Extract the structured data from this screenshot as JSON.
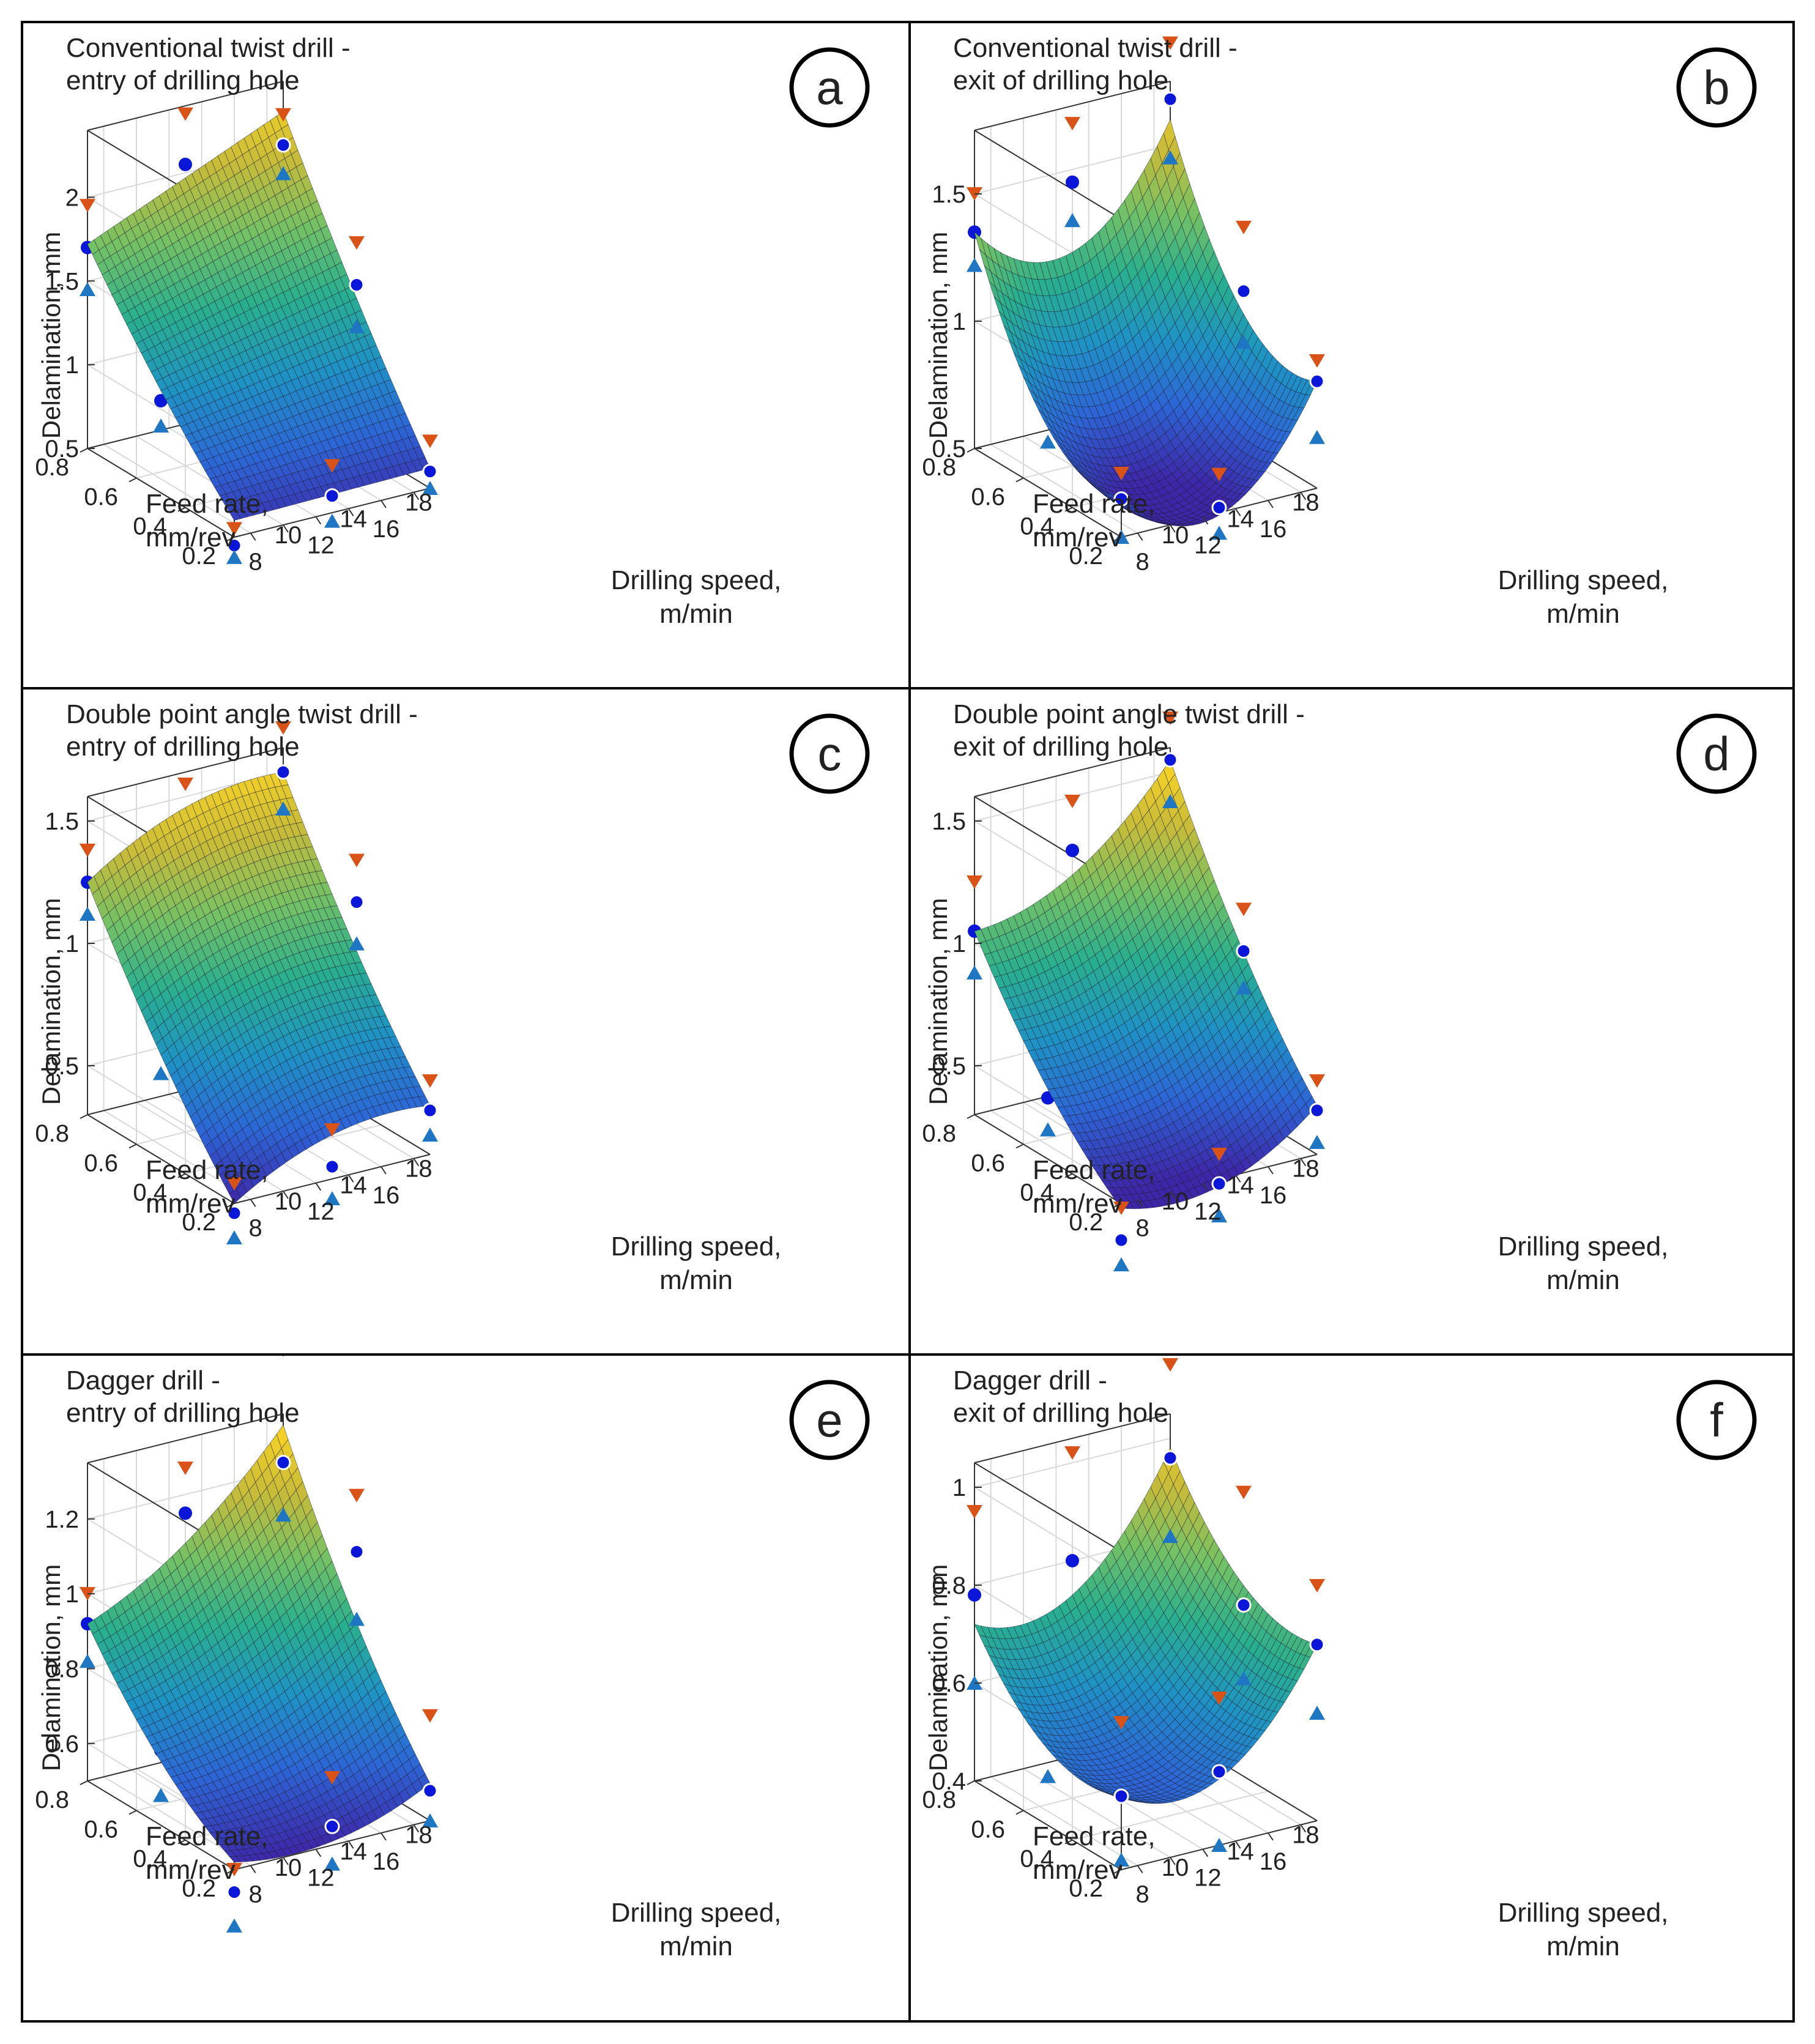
{
  "chart_data": [
    {
      "type": "surface",
      "panel_label": "a",
      "title": [
        "Conventional twist drill -",
        "entry of drilling hole"
      ],
      "xlabel": [
        "Drilling speed,",
        "m/min"
      ],
      "ylabel": [
        "Feed rate,",
        "mm/rev"
      ],
      "zlabel": "Delamination, mm",
      "x_ticks": [
        "8",
        "10",
        "12",
        "14",
        "16",
        "18"
      ],
      "y_ticks": [
        "0.2",
        "0.4",
        "0.6",
        "0.8"
      ],
      "z_ticks": [
        "0.5",
        "1",
        "1.5",
        "2"
      ],
      "xlim": [
        7,
        19
      ],
      "ylim": [
        0.2,
        0.8
      ],
      "zlim": [
        0.5,
        2.4
      ],
      "corners": [
        1.72,
        2.22,
        0.6,
        0.62
      ],
      "curvature": [
        0.0,
        0.05
      ],
      "max_markers": [
        {
          "x": 7,
          "y": 0.8,
          "z": 1.95
        },
        {
          "x": 13,
          "y": 0.8,
          "z": 2.35
        },
        {
          "x": 19,
          "y": 0.8,
          "z": 2.2
        },
        {
          "x": 7,
          "y": 0.5,
          "z": 1.35
        },
        {
          "x": 13,
          "y": 0.5,
          "z": 1.78
        },
        {
          "x": 19,
          "y": 0.5,
          "z": 1.7
        },
        {
          "x": 7,
          "y": 0.2,
          "z": 0.55
        },
        {
          "x": 13,
          "y": 0.2,
          "z": 0.78
        },
        {
          "x": 19,
          "y": 0.2,
          "z": 0.78
        }
      ],
      "mean_points": [
        {
          "x": 7,
          "y": 0.8,
          "z": 1.7
        },
        {
          "x": 13,
          "y": 0.8,
          "z": 2.05
        },
        {
          "x": 19,
          "y": 0.8,
          "z": 2.02
        },
        {
          "x": 7,
          "y": 0.5,
          "z": 1.05
        },
        {
          "x": 13,
          "y": 0.5,
          "z": 1.3
        },
        {
          "x": 19,
          "y": 0.5,
          "z": 1.45
        },
        {
          "x": 7,
          "y": 0.2,
          "z": 0.45
        },
        {
          "x": 13,
          "y": 0.2,
          "z": 0.6
        },
        {
          "x": 19,
          "y": 0.2,
          "z": 0.6
        }
      ],
      "min_markers": [
        {
          "x": 7,
          "y": 0.8,
          "z": 1.45
        },
        {
          "x": 13,
          "y": 0.8,
          "z": 1.8
        },
        {
          "x": 19,
          "y": 0.8,
          "z": 1.85
        },
        {
          "x": 7,
          "y": 0.5,
          "z": 0.9
        },
        {
          "x": 13,
          "y": 0.5,
          "z": 1.15
        },
        {
          "x": 19,
          "y": 0.5,
          "z": 1.2
        },
        {
          "x": 7,
          "y": 0.2,
          "z": 0.38
        },
        {
          "x": 13,
          "y": 0.2,
          "z": 0.45
        },
        {
          "x": 19,
          "y": 0.2,
          "z": 0.5
        }
      ]
    },
    {
      "type": "surface",
      "panel_label": "b",
      "title": [
        "Conventional twist drill -",
        "exit of drilling hole"
      ],
      "xlabel": [
        "Drilling speed,",
        "m/min"
      ],
      "ylabel": [
        "Feed rate,",
        "mm/rev"
      ],
      "zlabel": "Delamination, mm",
      "x_ticks": [
        "8",
        "10",
        "12",
        "14",
        "16",
        "18"
      ],
      "y_ticks": [
        "0.2",
        "0.4",
        "0.6",
        "0.8"
      ],
      "z_ticks": [
        "0.5",
        "1",
        "1.5"
      ],
      "xlim": [
        7,
        19
      ],
      "ylim": [
        0.2,
        0.8
      ],
      "zlim": [
        0.5,
        1.75
      ],
      "corners": [
        1.35,
        1.6,
        0.66,
        0.92
      ],
      "curvature": [
        0.3,
        0.25
      ],
      "max_markers": [
        {
          "x": 7,
          "y": 0.8,
          "z": 1.5
        },
        {
          "x": 13,
          "y": 0.8,
          "z": 1.68
        },
        {
          "x": 19,
          "y": 0.8,
          "z": 1.9
        },
        {
          "x": 7,
          "y": 0.5,
          "z": 0.98
        },
        {
          "x": 13,
          "y": 0.5,
          "z": 1.1
        },
        {
          "x": 19,
          "y": 0.5,
          "z": 1.35
        },
        {
          "x": 7,
          "y": 0.2,
          "z": 0.75
        },
        {
          "x": 13,
          "y": 0.2,
          "z": 0.65
        },
        {
          "x": 19,
          "y": 0.2,
          "z": 1.0
        }
      ],
      "mean_points": [
        {
          "x": 7,
          "y": 0.8,
          "z": 1.35
        },
        {
          "x": 13,
          "y": 0.8,
          "z": 1.45
        },
        {
          "x": 19,
          "y": 0.8,
          "z": 1.68
        },
        {
          "x": 7,
          "y": 0.5,
          "z": 0.85
        },
        {
          "x": 13,
          "y": 0.5,
          "z": 0.52
        },
        {
          "x": 19,
          "y": 0.5,
          "z": 1.1
        },
        {
          "x": 7,
          "y": 0.2,
          "z": 0.65
        },
        {
          "x": 13,
          "y": 0.2,
          "z": 0.52
        },
        {
          "x": 19,
          "y": 0.2,
          "z": 0.92
        }
      ],
      "min_markers": [
        {
          "x": 7,
          "y": 0.8,
          "z": 1.22
        },
        {
          "x": 13,
          "y": 0.8,
          "z": 1.3
        },
        {
          "x": 19,
          "y": 0.8,
          "z": 1.45
        },
        {
          "x": 7,
          "y": 0.5,
          "z": 0.7
        },
        {
          "x": 13,
          "y": 0.5,
          "z": 0.42
        },
        {
          "x": 19,
          "y": 0.5,
          "z": 0.9
        },
        {
          "x": 7,
          "y": 0.2,
          "z": 0.5
        },
        {
          "x": 13,
          "y": 0.2,
          "z": 0.42
        },
        {
          "x": 19,
          "y": 0.2,
          "z": 0.7
        }
      ]
    },
    {
      "type": "surface",
      "panel_label": "c",
      "title": [
        "Double point angle twist drill -",
        "entry of drilling hole"
      ],
      "xlabel": [
        "Drilling speed,",
        "m/min"
      ],
      "ylabel": [
        "Feed rate,",
        "mm/rev"
      ],
      "zlabel": "Delamination, mm",
      "x_ticks": [
        "8",
        "10",
        "12",
        "14",
        "16",
        "18"
      ],
      "y_ticks": [
        "0.2",
        "0.4",
        "0.6",
        "0.8"
      ],
      "z_ticks": [
        "0.5",
        "1",
        "1.5"
      ],
      "xlim": [
        7,
        19
      ],
      "ylim": [
        0.2,
        0.8
      ],
      "zlim": [
        0.3,
        1.6
      ],
      "corners": [
        1.25,
        1.5,
        0.3,
        0.5
      ],
      "curvature": [
        -0.08,
        0.05
      ],
      "max_markers": [
        {
          "x": 7,
          "y": 0.8,
          "z": 1.38
        },
        {
          "x": 13,
          "y": 0.8,
          "z": 1.55
        },
        {
          "x": 19,
          "y": 0.8,
          "z": 1.68
        },
        {
          "x": 7,
          "y": 0.5,
          "z": 0.98
        },
        {
          "x": 13,
          "y": 0.5,
          "z": 1.2
        },
        {
          "x": 19,
          "y": 0.5,
          "z": 1.32
        },
        {
          "x": 7,
          "y": 0.2,
          "z": 0.38
        },
        {
          "x": 13,
          "y": 0.2,
          "z": 0.5
        },
        {
          "x": 19,
          "y": 0.2,
          "z": 0.6
        }
      ],
      "mean_points": [
        {
          "x": 7,
          "y": 0.8,
          "z": 1.25
        },
        {
          "x": 13,
          "y": 0.8,
          "z": 1.38
        },
        {
          "x": 19,
          "y": 0.8,
          "z": 1.5
        },
        {
          "x": 7,
          "y": 0.5,
          "z": 0.82
        },
        {
          "x": 13,
          "y": 0.5,
          "z": 1.0
        },
        {
          "x": 19,
          "y": 0.5,
          "z": 1.15
        },
        {
          "x": 7,
          "y": 0.2,
          "z": 0.26
        },
        {
          "x": 13,
          "y": 0.2,
          "z": 0.35
        },
        {
          "x": 19,
          "y": 0.2,
          "z": 0.48
        }
      ],
      "min_markers": [
        {
          "x": 7,
          "y": 0.8,
          "z": 1.12
        },
        {
          "x": 13,
          "y": 0.8,
          "z": 1.25
        },
        {
          "x": 19,
          "y": 0.8,
          "z": 1.35
        },
        {
          "x": 7,
          "y": 0.5,
          "z": 0.65
        },
        {
          "x": 13,
          "y": 0.5,
          "z": 0.85
        },
        {
          "x": 19,
          "y": 0.5,
          "z": 0.98
        },
        {
          "x": 7,
          "y": 0.2,
          "z": 0.16
        },
        {
          "x": 13,
          "y": 0.2,
          "z": 0.22
        },
        {
          "x": 19,
          "y": 0.2,
          "z": 0.38
        }
      ]
    },
    {
      "type": "surface",
      "panel_label": "d",
      "title": [
        "Double point angle twist drill -",
        "exit of drilling hole"
      ],
      "xlabel": [
        "Drilling speed,",
        "m/min"
      ],
      "ylabel": [
        "Feed rate,",
        "mm/rev"
      ],
      "zlabel": "Delamination, mm",
      "x_ticks": [
        "8",
        "10",
        "12",
        "14",
        "16",
        "18"
      ],
      "y_ticks": [
        "0.2",
        "0.4",
        "0.6",
        "0.8"
      ],
      "z_ticks": [
        "0.5",
        "1",
        "1.5"
      ],
      "xlim": [
        7,
        19
      ],
      "ylim": [
        0.2,
        0.8
      ],
      "zlim": [
        0.3,
        1.6
      ],
      "corners": [
        1.05,
        1.55,
        0.28,
        0.5
      ],
      "curvature": [
        0.12,
        0.08
      ],
      "max_markers": [
        {
          "x": 7,
          "y": 0.8,
          "z": 1.25
        },
        {
          "x": 13,
          "y": 0.8,
          "z": 1.48
        },
        {
          "x": 19,
          "y": 0.8,
          "z": 1.72
        },
        {
          "x": 7,
          "y": 0.5,
          "z": 0.72
        },
        {
          "x": 13,
          "y": 0.5,
          "z": 0.85
        },
        {
          "x": 19,
          "y": 0.5,
          "z": 1.12
        },
        {
          "x": 7,
          "y": 0.2,
          "z": 0.28
        },
        {
          "x": 13,
          "y": 0.2,
          "z": 0.4
        },
        {
          "x": 19,
          "y": 0.2,
          "z": 0.6
        }
      ],
      "mean_points": [
        {
          "x": 7,
          "y": 0.8,
          "z": 1.05
        },
        {
          "x": 13,
          "y": 0.8,
          "z": 1.28
        },
        {
          "x": 19,
          "y": 0.8,
          "z": 1.55
        },
        {
          "x": 7,
          "y": 0.5,
          "z": 0.55
        },
        {
          "x": 13,
          "y": 0.5,
          "z": 0.72
        },
        {
          "x": 19,
          "y": 0.5,
          "z": 0.95
        },
        {
          "x": 7,
          "y": 0.2,
          "z": 0.15
        },
        {
          "x": 13,
          "y": 0.2,
          "z": 0.28
        },
        {
          "x": 19,
          "y": 0.2,
          "z": 0.48
        }
      ],
      "min_markers": [
        {
          "x": 7,
          "y": 0.8,
          "z": 0.88
        },
        {
          "x": 13,
          "y": 0.8,
          "z": 1.1
        },
        {
          "x": 19,
          "y": 0.8,
          "z": 1.38
        },
        {
          "x": 7,
          "y": 0.5,
          "z": 0.42
        },
        {
          "x": 13,
          "y": 0.5,
          "z": 0.58
        },
        {
          "x": 19,
          "y": 0.5,
          "z": 0.8
        },
        {
          "x": 7,
          "y": 0.2,
          "z": 0.05
        },
        {
          "x": 13,
          "y": 0.2,
          "z": 0.15
        },
        {
          "x": 19,
          "y": 0.2,
          "z": 0.35
        }
      ]
    },
    {
      "type": "surface",
      "panel_label": "e",
      "title": [
        "Dagger drill -",
        "entry of drilling hole"
      ],
      "xlabel": [
        "Drilling speed,",
        "m/min"
      ],
      "ylabel": [
        "Feed rate,",
        "mm/rev"
      ],
      "zlabel": "Delamination, mm",
      "x_ticks": [
        "8",
        "10",
        "12",
        "14",
        "16",
        "18"
      ],
      "y_ticks": [
        "0.2",
        "0.4",
        "0.6",
        "0.8"
      ],
      "z_ticks": [
        "0.6",
        "0.8",
        "1",
        "1.2"
      ],
      "xlim": [
        7,
        19
      ],
      "ylim": [
        0.2,
        0.8
      ],
      "zlim": [
        0.5,
        1.35
      ],
      "corners": [
        0.92,
        1.32,
        0.52,
        0.6
      ],
      "curvature": [
        0.05,
        0.05
      ],
      "max_markers": [
        {
          "x": 7,
          "y": 0.8,
          "z": 1.0
        },
        {
          "x": 13,
          "y": 0.8,
          "z": 1.27
        },
        {
          "x": 19,
          "y": 0.8,
          "z": 1.52
        },
        {
          "x": 7,
          "y": 0.5,
          "z": 0.82
        },
        {
          "x": 13,
          "y": 0.5,
          "z": 1.0
        },
        {
          "x": 19,
          "y": 0.5,
          "z": 1.25
        },
        {
          "x": 7,
          "y": 0.2,
          "z": 0.5
        },
        {
          "x": 13,
          "y": 0.2,
          "z": 0.68
        },
        {
          "x": 19,
          "y": 0.2,
          "z": 0.78
        }
      ],
      "mean_points": [
        {
          "x": 7,
          "y": 0.8,
          "z": 0.92
        },
        {
          "x": 13,
          "y": 0.8,
          "z": 1.15
        },
        {
          "x": 19,
          "y": 0.8,
          "z": 1.22
        },
        {
          "x": 7,
          "y": 0.5,
          "z": 0.7
        },
        {
          "x": 13,
          "y": 0.5,
          "z": 0.9
        },
        {
          "x": 19,
          "y": 0.5,
          "z": 1.1
        },
        {
          "x": 7,
          "y": 0.2,
          "z": 0.44
        },
        {
          "x": 13,
          "y": 0.2,
          "z": 0.55
        },
        {
          "x": 19,
          "y": 0.2,
          "z": 0.58
        }
      ],
      "min_markers": [
        {
          "x": 7,
          "y": 0.8,
          "z": 0.82
        },
        {
          "x": 13,
          "y": 0.8,
          "z": 1.0
        },
        {
          "x": 19,
          "y": 0.8,
          "z": 1.08
        },
        {
          "x": 7,
          "y": 0.5,
          "z": 0.58
        },
        {
          "x": 13,
          "y": 0.5,
          "z": 0.78
        },
        {
          "x": 19,
          "y": 0.5,
          "z": 0.92
        },
        {
          "x": 7,
          "y": 0.2,
          "z": 0.35
        },
        {
          "x": 13,
          "y": 0.2,
          "z": 0.45
        },
        {
          "x": 19,
          "y": 0.2,
          "z": 0.5
        }
      ]
    },
    {
      "type": "surface",
      "panel_label": "f",
      "title": [
        "Dagger drill -",
        "exit of drilling hole"
      ],
      "xlabel": [
        "Drilling speed,",
        "m/min"
      ],
      "ylabel": [
        "Feed rate,",
        "mm/rev"
      ],
      "zlabel": "Delamination, mm",
      "x_ticks": [
        "8",
        "10",
        "12",
        "14",
        "16",
        "18"
      ],
      "y_ticks": [
        "0.2",
        "0.4",
        "0.6",
        "0.8"
      ],
      "z_ticks": [
        "0.4",
        "0.6",
        "0.8",
        "1"
      ],
      "xlim": [
        7,
        19
      ],
      "ylim": [
        0.2,
        0.8
      ],
      "zlim": [
        0.4,
        1.05
      ],
      "corners": [
        0.72,
        0.98,
        0.55,
        0.76
      ],
      "curvature": [
        0.12,
        0.08
      ],
      "max_markers": [
        {
          "x": 7,
          "y": 0.8,
          "z": 0.95
        },
        {
          "x": 13,
          "y": 0.8,
          "z": 1.02
        },
        {
          "x": 19,
          "y": 0.8,
          "z": 1.15
        },
        {
          "x": 7,
          "y": 0.5,
          "z": 0.78
        },
        {
          "x": 13,
          "y": 0.5,
          "z": 0.82
        },
        {
          "x": 19,
          "y": 0.5,
          "z": 0.98
        },
        {
          "x": 7,
          "y": 0.2,
          "z": 0.7
        },
        {
          "x": 13,
          "y": 0.2,
          "z": 0.7
        },
        {
          "x": 19,
          "y": 0.2,
          "z": 0.88
        }
      ],
      "mean_points": [
        {
          "x": 7,
          "y": 0.8,
          "z": 0.78
        },
        {
          "x": 13,
          "y": 0.8,
          "z": 0.8
        },
        {
          "x": 19,
          "y": 0.8,
          "z": 0.96
        },
        {
          "x": 7,
          "y": 0.5,
          "z": 0.62
        },
        {
          "x": 13,
          "y": 0.5,
          "z": 0.58
        },
        {
          "x": 19,
          "y": 0.5,
          "z": 0.75
        },
        {
          "x": 7,
          "y": 0.2,
          "z": 0.55
        },
        {
          "x": 13,
          "y": 0.2,
          "z": 0.55
        },
        {
          "x": 19,
          "y": 0.2,
          "z": 0.76
        }
      ],
      "min_markers": [
        {
          "x": 7,
          "y": 0.8,
          "z": 0.6
        },
        {
          "x": 13,
          "y": 0.8,
          "z": 0.7
        },
        {
          "x": 19,
          "y": 0.8,
          "z": 0.8
        },
        {
          "x": 7,
          "y": 0.5,
          "z": 0.5
        },
        {
          "x": 13,
          "y": 0.5,
          "z": 0.48
        },
        {
          "x": 19,
          "y": 0.5,
          "z": 0.6
        },
        {
          "x": 7,
          "y": 0.2,
          "z": 0.42
        },
        {
          "x": 13,
          "y": 0.2,
          "z": 0.4
        },
        {
          "x": 19,
          "y": 0.2,
          "z": 0.62
        }
      ]
    }
  ],
  "colors": {
    "max_marker": "#d95319",
    "mean_point": "#0b17d8",
    "min_marker": "#1f77c4",
    "axis": "#333333",
    "grid": "#d9d9d9",
    "colormap": [
      "#3e26a8",
      "#2d66d6",
      "#1f93c4",
      "#2aaf8e",
      "#75c165",
      "#c7bb3a",
      "#f9d325"
    ]
  }
}
